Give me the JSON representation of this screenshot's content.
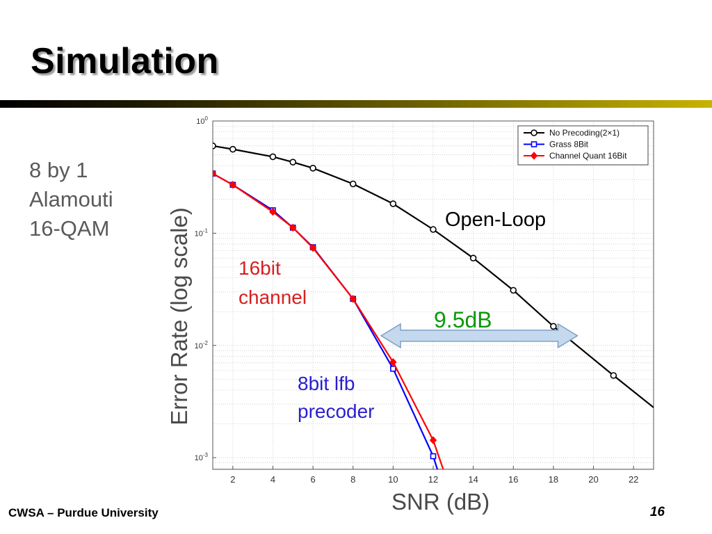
{
  "slide": {
    "title": "Simulation",
    "side_lines": [
      "8 by 1",
      "Alamouti",
      "16-QAM"
    ],
    "footer_left": "CWSA – Purdue University",
    "page_number": "16"
  },
  "colors": {
    "title_bar": "#c8b300",
    "side_text": "#5a5a5a",
    "annotation_green": "#0a9a0a",
    "annotation_red": "#d62020",
    "annotation_blue": "#2a1ed0",
    "arrow_fill": "#c4d9ee",
    "arrow_stroke": "#7f9fc4"
  },
  "annotations": {
    "open_loop": "Open-Loop",
    "channel_16bit": [
      "16bit",
      "channel"
    ],
    "lfb_8bit": [
      "8bit lfb",
      "precoder"
    ],
    "gain": "9.5dB"
  },
  "chart_data": {
    "type": "line",
    "xlabel": "SNR (dB)",
    "ylabel": "Error Rate (log scale)",
    "xlim": [
      1,
      23
    ],
    "ylim": [
      0.0007,
      1
    ],
    "y_scale": "log",
    "grid": true,
    "legend_position": "top-right",
    "x_ticks": [
      2,
      4,
      6,
      8,
      10,
      12,
      14,
      16,
      18,
      20,
      22
    ],
    "y_ticks": [
      {
        "value": 1,
        "base": "10",
        "exp": "0"
      },
      {
        "value": 0.1,
        "base": "10",
        "exp": "-1"
      },
      {
        "value": 0.01,
        "base": "10",
        "exp": "-2"
      },
      {
        "value": 0.001,
        "base": "10",
        "exp": "-3"
      }
    ],
    "series": [
      {
        "name": "No Precoding(2×1)",
        "color": "#000000",
        "marker": "circle",
        "x": [
          1,
          2,
          4,
          5,
          6,
          8,
          10,
          12,
          14,
          16,
          18,
          21,
          23
        ],
        "y": [
          0.6,
          0.56,
          0.48,
          0.43,
          0.38,
          0.275,
          0.183,
          0.108,
          0.06,
          0.031,
          0.0148,
          0.0054,
          0.0028
        ],
        "marker_count": 12
      },
      {
        "name": "Grass 8Bit",
        "color": "#0000ff",
        "marker": "square",
        "x": [
          1,
          2,
          4,
          5,
          6,
          8,
          10,
          12,
          12.3
        ],
        "y": [
          0.34,
          0.27,
          0.16,
          0.112,
          0.075,
          0.026,
          0.0062,
          0.00103,
          0.0007
        ],
        "marker_count": 8
      },
      {
        "name": "Channel Quant 16Bit",
        "color": "#ff0000",
        "marker": "diamond",
        "x": [
          1,
          2,
          4,
          5,
          6,
          8,
          10,
          12,
          12.6
        ],
        "y": [
          0.34,
          0.27,
          0.155,
          0.112,
          0.074,
          0.026,
          0.0071,
          0.00143,
          0.0007
        ],
        "marker_count": 8
      }
    ]
  }
}
